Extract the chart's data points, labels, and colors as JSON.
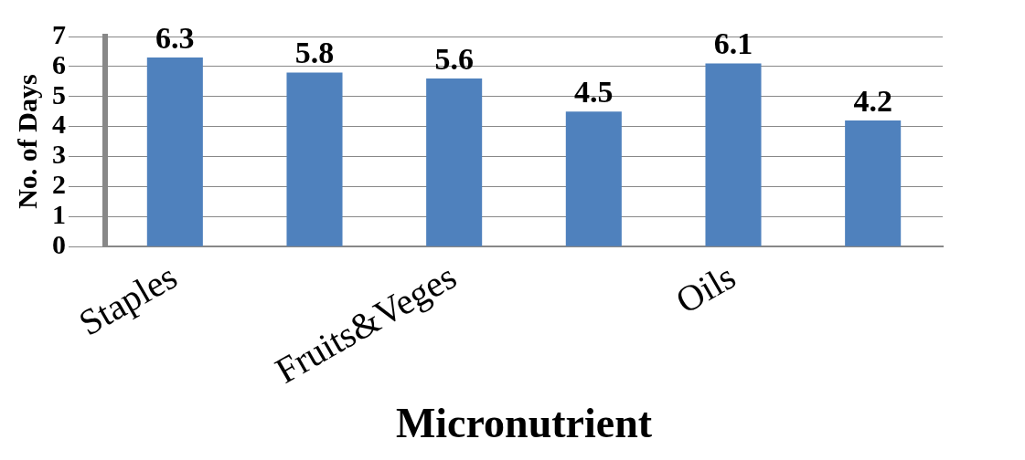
{
  "chart_data": {
    "type": "bar",
    "xlabel": "Micronutrient",
    "ylabel": "No. of Days",
    "categories": [
      "Staples",
      null,
      "Fruits&Veges",
      null,
      "Oils",
      null
    ],
    "values": [
      6.3,
      5.8,
      5.6,
      4.5,
      6.1,
      4.2
    ],
    "color": "#4f81bd",
    "ylim": [
      0,
      7
    ],
    "yticks": [
      0,
      1,
      2,
      3,
      4,
      5,
      6,
      7
    ],
    "grid": "y",
    "data_labels": true
  }
}
